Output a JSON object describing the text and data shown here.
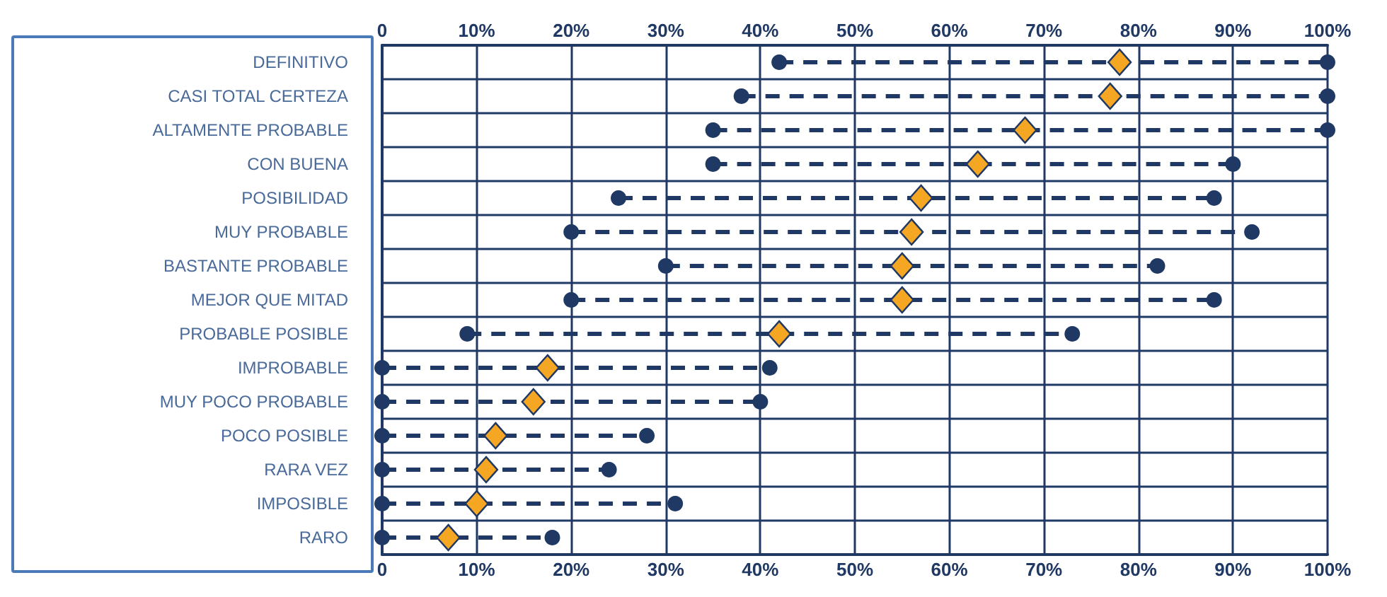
{
  "chart_data": {
    "type": "scatter",
    "orientation": "horizontal",
    "categories": [
      "DEFINITIVO",
      "CASI TOTAL CERTEZA",
      "ALTAMENTE PROBABLE",
      "CON BUENA",
      "POSIBILIDAD",
      "MUY PROBABLE",
      "BASTANTE PROBABLE",
      "MEJOR QUE MITAD",
      "PROBABLE POSIBLE",
      "IMPROBABLE",
      "MUY POCO PROBABLE",
      "POCO POSIBLE",
      "RARA VEZ",
      "IMPOSIBLE",
      "RARO"
    ],
    "series": [
      {
        "color": "#1f3864",
        "marker": "circle",
        "values": [
          42,
          38,
          35,
          35,
          25,
          20,
          30,
          20,
          9,
          0,
          0,
          0,
          0,
          0,
          0
        ]
      },
      {
        "color": "#f5a623",
        "marker": "diamond",
        "values": [
          78,
          77,
          68,
          63,
          57,
          56,
          55,
          55,
          42,
          17.5,
          16,
          12,
          11,
          10,
          7
        ]
      },
      {
        "color": "#1f3864",
        "marker": "circle",
        "values": [
          100,
          100,
          100,
          90,
          88,
          92,
          82,
          88,
          73,
          41,
          40,
          28,
          24,
          31,
          18
        ]
      }
    ],
    "line_style": "dashed",
    "xlim": [
      0,
      100
    ],
    "xticks": [
      0,
      {
        "value": 10,
        "label": "10%"
      },
      {
        "value": 20,
        "label": "20%"
      },
      {
        "value": 30,
        "label": "30%"
      },
      {
        "value": 40,
        "label": "40%"
      },
      {
        "value": 50,
        "label": "50%"
      },
      {
        "value": 60,
        "label": "60%"
      },
      {
        "value": 70,
        "label": "70%"
      },
      {
        "value": 80,
        "label": "80%"
      },
      {
        "value": 90,
        "label": "90%"
      },
      {
        "value": 100,
        "label": "100%"
      }
    ],
    "x2lim": [
      0,
      100
    ],
    "x2ticks": [
      0,
      {
        "value": 10,
        "label": "10%"
      },
      {
        "value": 20,
        "label": "20%"
      },
      {
        "value": 30,
        "label": "30%"
      },
      {
        "value": 40,
        "label": "40%"
      },
      {
        "value": 50,
        "label": "50%"
      },
      {
        "value": 60,
        "label": "60%"
      },
      {
        "value": 70,
        "label": "70%"
      },
      {
        "value": 80,
        "label": "80%"
      },
      {
        "value": 90,
        "label": "90%"
      },
      {
        "value": 100,
        "label": "100%"
      }
    ],
    "grid": true
  }
}
